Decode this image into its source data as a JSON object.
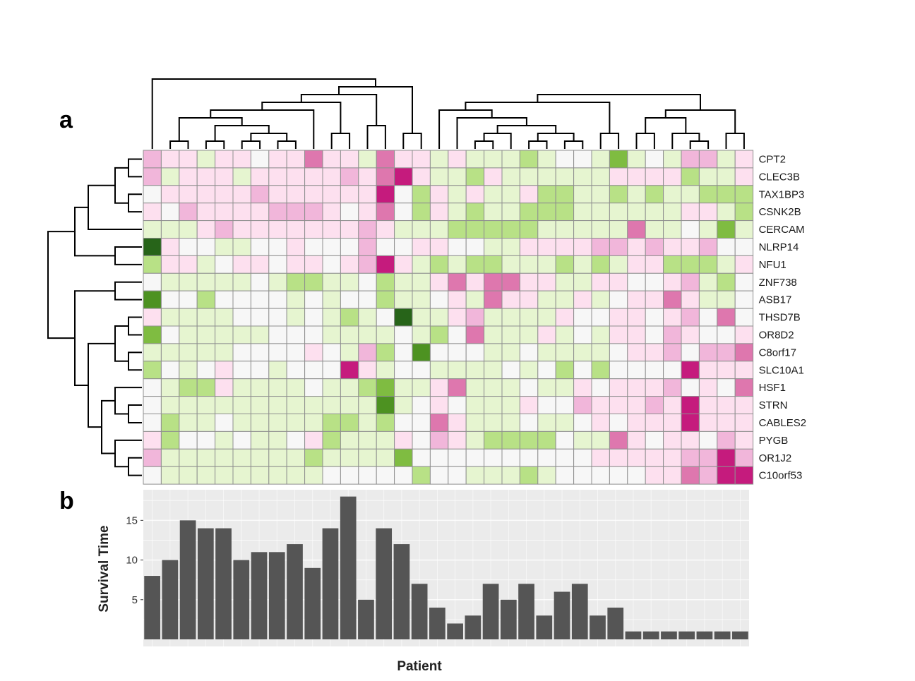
{
  "panels": {
    "a": "a",
    "b": "b"
  },
  "colors": {
    "palette": [
      "#276419",
      "#4d9221",
      "#7fbc41",
      "#b8e186",
      "#e6f5d0",
      "#f7f7f7",
      "#fde0ef",
      "#f1b6da",
      "#de77ae",
      "#c51b7d"
    ],
    "bar": "#555555",
    "panel_bg": "#ebebeb",
    "grid": "#f5f5f5",
    "cell_border": "#8f8f8f",
    "dendro": "#000000"
  },
  "chart_data": [
    {
      "type": "heatmap",
      "title": "",
      "genes": [
        "CPT2",
        "CLEC3B",
        "TAX1BP3",
        "CSNK2B",
        "CERCAM",
        "NLRP14",
        "NFU1",
        "ZNF738",
        "ASB17",
        "THSD7B",
        "OR8D2",
        "C8orf17",
        "SLC10A1",
        "HSF1",
        "STRN",
        "CABLES2",
        "PYGB",
        "OR1J2",
        "C10orf53"
      ],
      "patients": 34,
      "scale_note": "levels 0 (dark green) .. 9 (dark magenta), 5 = neutral",
      "matrix": [
        [
          7,
          6,
          6,
          4,
          6,
          6,
          5,
          6,
          6,
          8,
          6,
          6,
          4,
          8,
          6,
          6,
          4,
          6,
          4,
          4,
          4,
          3,
          4,
          5,
          5,
          4,
          2,
          4,
          5,
          4,
          7,
          7,
          4,
          6
        ],
        [
          7,
          4,
          6,
          6,
          6,
          4,
          6,
          6,
          6,
          6,
          6,
          7,
          6,
          8,
          9,
          6,
          4,
          4,
          3,
          6,
          4,
          4,
          4,
          4,
          4,
          4,
          6,
          6,
          6,
          6,
          3,
          4,
          4,
          6
        ],
        [
          5,
          6,
          6,
          6,
          6,
          6,
          7,
          6,
          6,
          6,
          6,
          6,
          6,
          9,
          5,
          3,
          6,
          4,
          6,
          4,
          4,
          6,
          3,
          3,
          4,
          4,
          3,
          4,
          3,
          4,
          4,
          3,
          3,
          3
        ],
        [
          6,
          5,
          7,
          6,
          6,
          6,
          6,
          7,
          7,
          7,
          6,
          5,
          6,
          8,
          5,
          3,
          6,
          4,
          3,
          4,
          4,
          3,
          3,
          3,
          4,
          4,
          4,
          4,
          4,
          4,
          6,
          6,
          4,
          3
        ],
        [
          4,
          4,
          4,
          6,
          7,
          6,
          6,
          6,
          6,
          6,
          6,
          6,
          7,
          6,
          4,
          4,
          4,
          3,
          3,
          3,
          3,
          3,
          4,
          4,
          4,
          4,
          4,
          8,
          4,
          4,
          5,
          4,
          2,
          4
        ],
        [
          0,
          6,
          5,
          5,
          4,
          4,
          5,
          5,
          6,
          5,
          5,
          5,
          7,
          5,
          5,
          6,
          6,
          5,
          5,
          4,
          4,
          6,
          6,
          6,
          6,
          7,
          7,
          6,
          7,
          6,
          6,
          7,
          5,
          5
        ],
        [
          3,
          6,
          6,
          4,
          5,
          6,
          6,
          5,
          6,
          6,
          5,
          6,
          7,
          9,
          6,
          4,
          3,
          4,
          3,
          3,
          4,
          4,
          4,
          3,
          4,
          3,
          4,
          6,
          6,
          3,
          3,
          3,
          4,
          6
        ],
        [
          5,
          4,
          4,
          4,
          4,
          4,
          5,
          4,
          3,
          3,
          4,
          4,
          5,
          3,
          4,
          4,
          6,
          8,
          6,
          8,
          8,
          6,
          6,
          4,
          4,
          6,
          6,
          5,
          5,
          6,
          7,
          4,
          3,
          5
        ],
        [
          1,
          5,
          5,
          3,
          5,
          5,
          5,
          5,
          4,
          5,
          4,
          5,
          5,
          3,
          4,
          4,
          5,
          6,
          4,
          8,
          6,
          6,
          4,
          4,
          6,
          4,
          5,
          6,
          6,
          8,
          6,
          4,
          4,
          5
        ],
        [
          6,
          4,
          4,
          4,
          4,
          5,
          5,
          5,
          4,
          5,
          4,
          3,
          4,
          5,
          0,
          4,
          4,
          6,
          7,
          4,
          4,
          4,
          4,
          6,
          5,
          5,
          6,
          6,
          5,
          6,
          7,
          5,
          8,
          5
        ],
        [
          2,
          5,
          4,
          4,
          4,
          4,
          4,
          5,
          5,
          5,
          4,
          4,
          4,
          4,
          5,
          4,
          3,
          5,
          8,
          4,
          4,
          4,
          6,
          4,
          5,
          4,
          6,
          6,
          5,
          7,
          6,
          5,
          5,
          6
        ],
        [
          4,
          4,
          4,
          4,
          4,
          5,
          5,
          5,
          5,
          6,
          5,
          4,
          7,
          3,
          5,
          1,
          5,
          5,
          5,
          4,
          4,
          5,
          4,
          4,
          4,
          4,
          5,
          6,
          6,
          7,
          5,
          7,
          7,
          8
        ],
        [
          3,
          5,
          4,
          5,
          6,
          5,
          5,
          4,
          5,
          5,
          5,
          9,
          6,
          4,
          5,
          5,
          4,
          4,
          4,
          4,
          5,
          4,
          5,
          3,
          5,
          3,
          5,
          5,
          5,
          5,
          9,
          6,
          6,
          6
        ],
        [
          5,
          4,
          3,
          3,
          6,
          4,
          4,
          4,
          4,
          5,
          4,
          4,
          3,
          2,
          4,
          4,
          6,
          8,
          4,
          4,
          4,
          5,
          4,
          4,
          6,
          5,
          6,
          6,
          6,
          7,
          5,
          6,
          5,
          8
        ],
        [
          5,
          4,
          4,
          4,
          4,
          4,
          4,
          4,
          4,
          4,
          4,
          4,
          4,
          1,
          4,
          5,
          6,
          5,
          4,
          4,
          4,
          6,
          5,
          5,
          7,
          6,
          6,
          6,
          7,
          6,
          9,
          6,
          6,
          6
        ],
        [
          5,
          3,
          4,
          4,
          5,
          4,
          4,
          4,
          4,
          4,
          3,
          3,
          4,
          3,
          5,
          5,
          8,
          6,
          4,
          4,
          4,
          5,
          4,
          4,
          5,
          6,
          5,
          6,
          6,
          6,
          9,
          6,
          6,
          6
        ],
        [
          6,
          3,
          5,
          5,
          4,
          5,
          4,
          4,
          5,
          6,
          3,
          4,
          4,
          4,
          6,
          5,
          7,
          6,
          4,
          3,
          3,
          3,
          3,
          5,
          4,
          4,
          8,
          6,
          5,
          6,
          6,
          5,
          7,
          6
        ],
        [
          7,
          4,
          4,
          4,
          4,
          4,
          4,
          4,
          4,
          3,
          4,
          4,
          4,
          4,
          2,
          5,
          5,
          5,
          5,
          5,
          5,
          5,
          5,
          5,
          5,
          6,
          6,
          6,
          6,
          6,
          7,
          7,
          9,
          7
        ],
        [
          5,
          4,
          4,
          4,
          4,
          4,
          4,
          4,
          4,
          4,
          5,
          5,
          5,
          5,
          5,
          3,
          5,
          5,
          4,
          4,
          4,
          3,
          4,
          5,
          5,
          5,
          5,
          5,
          6,
          6,
          8,
          7,
          9,
          9
        ]
      ]
    },
    {
      "type": "bar",
      "title": "",
      "xlabel": "Patient",
      "ylabel": "Survival Time",
      "ylim": [
        0,
        18.5
      ],
      "yticks": [
        "5",
        "10",
        "15"
      ],
      "values": [
        8,
        10,
        15,
        14,
        14,
        10,
        11,
        11,
        12,
        9,
        14,
        18,
        5,
        14,
        12,
        7,
        4,
        2,
        3,
        7,
        5,
        7,
        3,
        6,
        7,
        3,
        4,
        1,
        1,
        1,
        1,
        1,
        1,
        1
      ]
    }
  ]
}
